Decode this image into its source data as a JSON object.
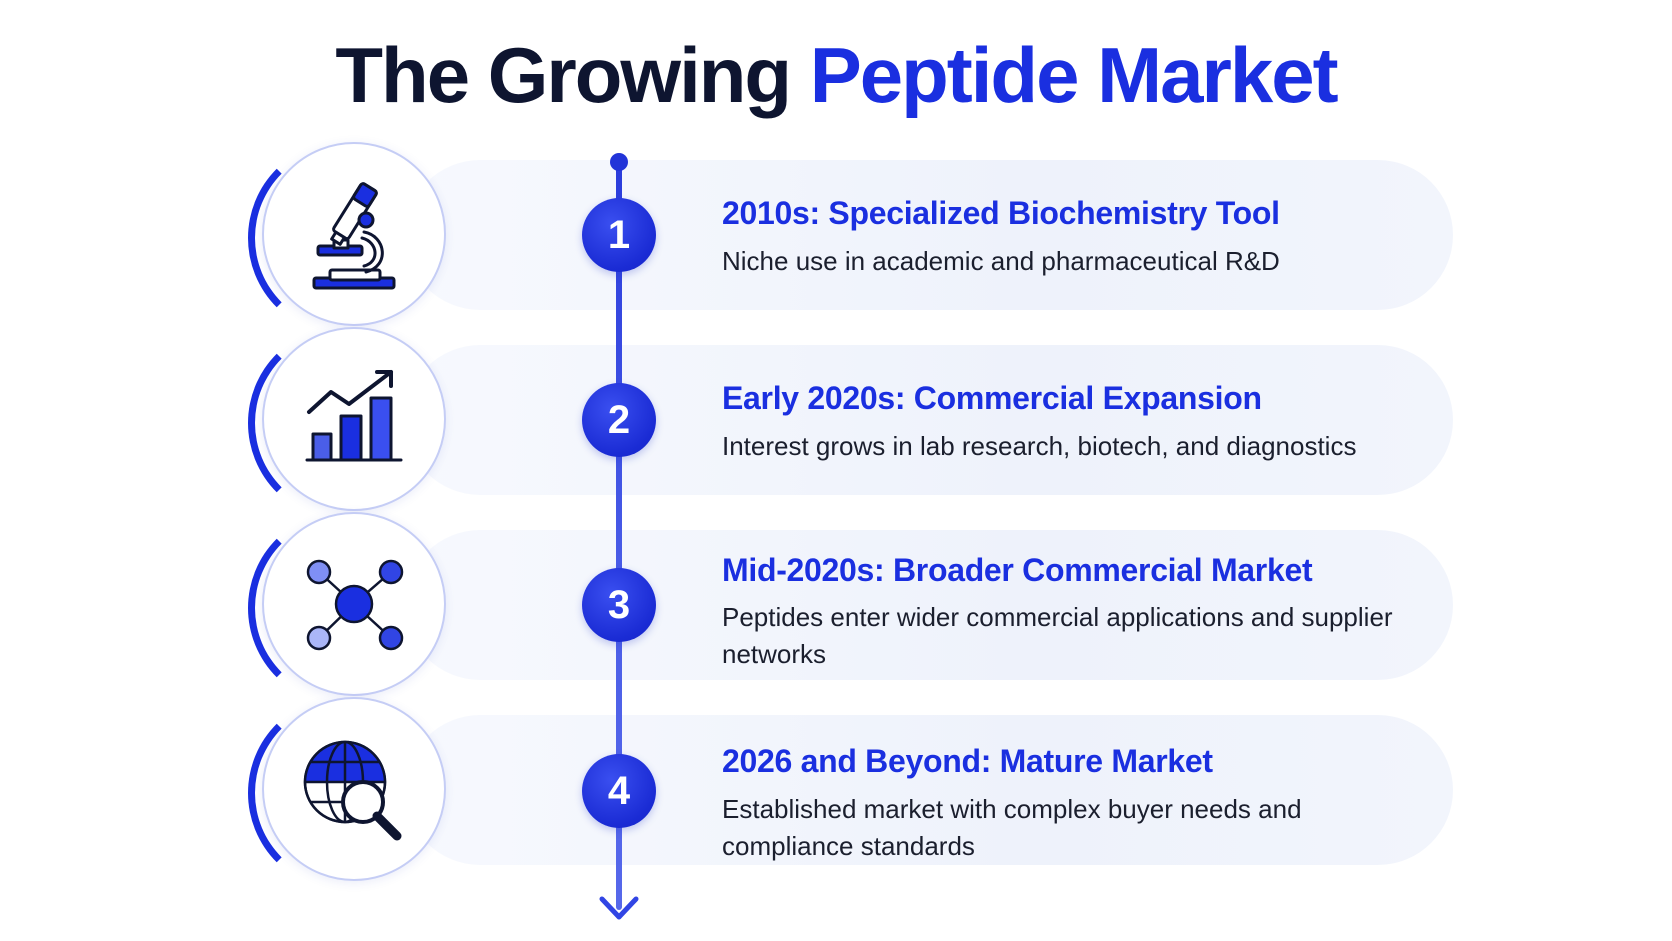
{
  "title": {
    "part1": "The Growing",
    "part2": "Peptide Market"
  },
  "items": [
    {
      "number": "1",
      "heading": "2010s: Specialized Biochemistry Tool",
      "description": "Niche use in academic and pharmaceutical R&D",
      "icon": "microscope-icon"
    },
    {
      "number": "2",
      "heading": "Early 2020s: Commercial Expansion",
      "description": "Interest grows in lab research, biotech, and diagnostics",
      "icon": "growth-chart-icon"
    },
    {
      "number": "3",
      "heading": "Mid-2020s: Broader Commercial Market",
      "description": "Peptides enter wider commercial applications and supplier networks",
      "icon": "network-icon"
    },
    {
      "number": "4",
      "heading": "2026 and Beyond: Mature Market",
      "description": "Established market with complex buyer needs and compliance standards",
      "icon": "globe-search-icon"
    }
  ],
  "colors": {
    "accent": "#1a2fe0",
    "dark": "#0e1530",
    "light_accent": "#8fa0f5"
  }
}
